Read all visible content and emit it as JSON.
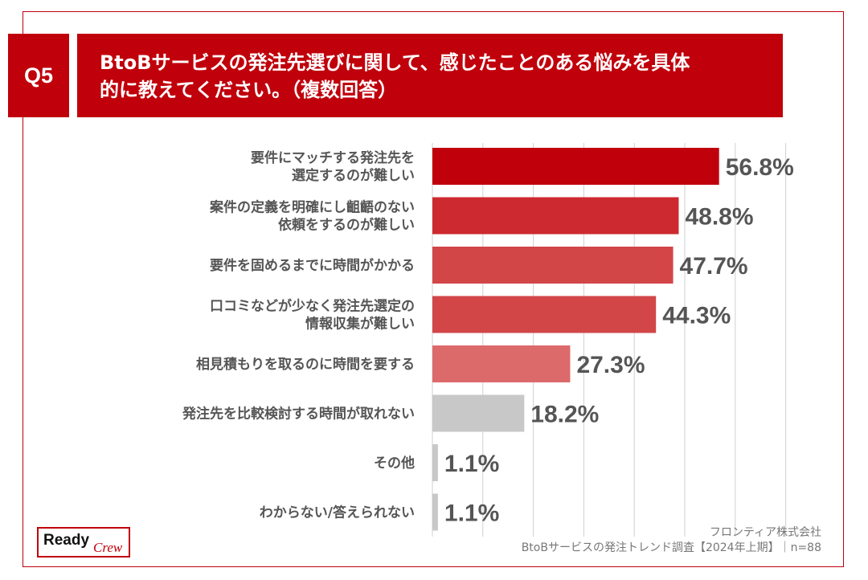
{
  "question": {
    "number": "Q5",
    "title_line1": "BtoBサービスの発注先選びに関して、感じたことのある悩みを具体",
    "title_line2": "的に教えてください。（複数回答）"
  },
  "chart_data": {
    "type": "bar",
    "orientation": "horizontal",
    "categories": [
      [
        "要件にマッチする発注先を",
        "選定するのが難しい"
      ],
      [
        "案件の定義を明確にし齟齬のない",
        "依頼をするのが難しい"
      ],
      [
        "要件を固めるまでに時間がかかる"
      ],
      [
        "口コミなどが少なく発注先選定の",
        "情報収集が難しい"
      ],
      [
        "相見積もりを取るのに時間を要する"
      ],
      [
        "発注先を比較検討する時間が取れない"
      ],
      [
        "その他"
      ],
      [
        "わからない/答えられない"
      ]
    ],
    "values": [
      56.8,
      48.8,
      47.7,
      44.3,
      27.3,
      18.2,
      1.1,
      1.1
    ],
    "value_labels": [
      "56.8%",
      "48.8%",
      "47.7%",
      "44.3%",
      "27.3%",
      "18.2%",
      "1.1%",
      "1.1%"
    ],
    "colors": [
      "#c0000b",
      "#cc2a30",
      "#d24648",
      "#d24648",
      "#dc6a6a",
      "#c8c8c8",
      "#c8c8c8",
      "#c8c8c8"
    ],
    "xlim": [
      0,
      70
    ],
    "grid": true
  },
  "source": {
    "company": "フロンティア株式会社",
    "survey": "BtoBサービスの発注トレンド調査【2024年上期】｜n=88"
  },
  "logo": {
    "ready": "Ready",
    "crew": "Crew"
  }
}
